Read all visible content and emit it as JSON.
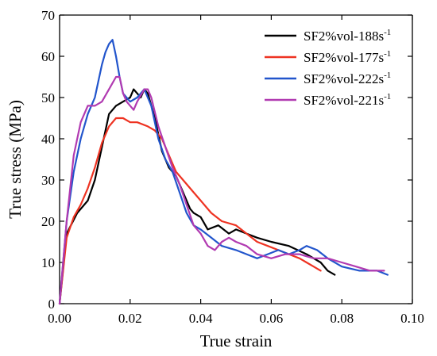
{
  "chart_data": {
    "type": "line",
    "title": "",
    "xlabel": "True strain",
    "ylabel": "True stress (MPa)",
    "xlim": [
      0.0,
      0.1
    ],
    "ylim": [
      0,
      70
    ],
    "xticks": [
      "0.00",
      "0.02",
      "0.04",
      "0.06",
      "0.08",
      "0.10"
    ],
    "yticks": [
      "0",
      "10",
      "20",
      "30",
      "40",
      "50",
      "60",
      "70"
    ],
    "grid": false,
    "legend_position": "top-right",
    "series": [
      {
        "name": "SF2%vol-188s",
        "name_sup": "-1",
        "color": "#000000",
        "x": [
          0.0,
          0.002,
          0.005,
          0.008,
          0.01,
          0.012,
          0.014,
          0.016,
          0.018,
          0.02,
          0.021,
          0.022,
          0.023,
          0.024,
          0.025,
          0.027,
          0.029,
          0.031,
          0.033,
          0.035,
          0.037,
          0.038,
          0.04,
          0.042,
          0.045,
          0.048,
          0.05,
          0.053,
          0.056,
          0.06,
          0.065,
          0.07,
          0.074,
          0.076,
          0.078
        ],
        "y": [
          0,
          17,
          22,
          25,
          30,
          38,
          46,
          48,
          49,
          50,
          52,
          51,
          50,
          52,
          51,
          45,
          37,
          33,
          31,
          27,
          23,
          22,
          21,
          18,
          19,
          17,
          18,
          17,
          16,
          15,
          14,
          12,
          10,
          8,
          7
        ]
      },
      {
        "name": "SF2%vol-177s",
        "name_sup": "-1",
        "color": "#ee3322",
        "x": [
          0.0,
          0.002,
          0.004,
          0.006,
          0.008,
          0.01,
          0.012,
          0.014,
          0.016,
          0.018,
          0.02,
          0.022,
          0.025,
          0.027,
          0.029,
          0.031,
          0.033,
          0.035,
          0.038,
          0.04,
          0.043,
          0.046,
          0.05,
          0.053,
          0.056,
          0.059,
          0.062,
          0.065,
          0.068,
          0.07,
          0.072,
          0.074
        ],
        "y": [
          0,
          16,
          21,
          24,
          28,
          33,
          39,
          43,
          45,
          45,
          44,
          44,
          43,
          42,
          40,
          36,
          32,
          30,
          27,
          25,
          22,
          20,
          19,
          17,
          15,
          14,
          13,
          12,
          11,
          10,
          9,
          8
        ]
      },
      {
        "name": "SF2%vol-222s",
        "name_sup": "-1",
        "color": "#2255cc",
        "x": [
          0.0,
          0.002,
          0.004,
          0.006,
          0.008,
          0.01,
          0.012,
          0.013,
          0.014,
          0.015,
          0.016,
          0.017,
          0.018,
          0.02,
          0.022,
          0.024,
          0.026,
          0.028,
          0.03,
          0.032,
          0.034,
          0.036,
          0.038,
          0.04,
          0.043,
          0.046,
          0.05,
          0.053,
          0.056,
          0.059,
          0.062,
          0.065,
          0.068,
          0.07,
          0.073,
          0.076,
          0.08,
          0.085,
          0.09,
          0.093
        ],
        "y": [
          0,
          20,
          32,
          40,
          46,
          50,
          58,
          61,
          63,
          64,
          60,
          55,
          51,
          49,
          50,
          52,
          48,
          40,
          35,
          32,
          27,
          22,
          19,
          18,
          16,
          14,
          13,
          12,
          11,
          12,
          13,
          12,
          13,
          14,
          13,
          11,
          9,
          8,
          8,
          7
        ]
      },
      {
        "name": "SF2%vol-221s",
        "name_sup": "-1",
        "color": "#b13ab1",
        "x": [
          0.0,
          0.002,
          0.004,
          0.006,
          0.008,
          0.01,
          0.012,
          0.014,
          0.016,
          0.017,
          0.018,
          0.019,
          0.02,
          0.021,
          0.022,
          0.024,
          0.025,
          0.026,
          0.028,
          0.03,
          0.032,
          0.034,
          0.036,
          0.038,
          0.04,
          0.042,
          0.044,
          0.046,
          0.048,
          0.05,
          0.053,
          0.056,
          0.06,
          0.064,
          0.068,
          0.072,
          0.076,
          0.08,
          0.084,
          0.088,
          0.09,
          0.092
        ],
        "y": [
          0,
          20,
          36,
          44,
          48,
          48,
          49,
          52,
          55,
          55,
          51,
          49,
          48,
          47,
          49,
          52,
          52,
          50,
          43,
          38,
          33,
          29,
          24,
          19,
          17,
          14,
          13,
          15,
          16,
          15,
          14,
          12,
          11,
          12,
          12,
          11,
          11,
          10,
          9,
          8,
          8,
          8
        ]
      }
    ]
  }
}
